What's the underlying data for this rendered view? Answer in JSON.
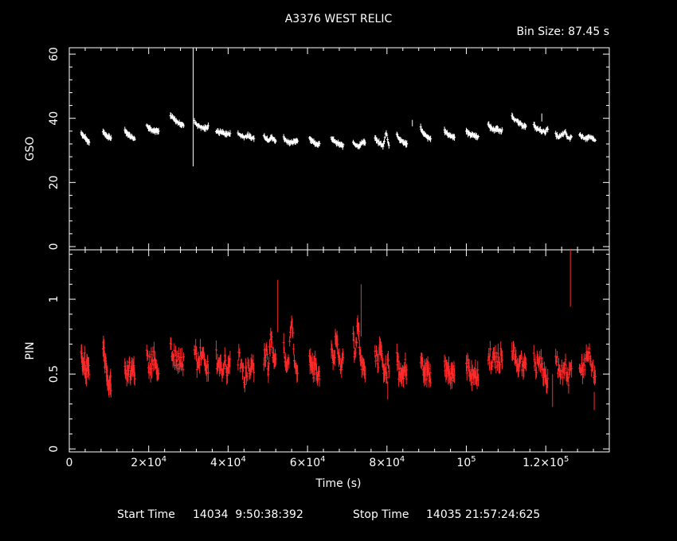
{
  "chart_data": {
    "type": "scatter",
    "title": "A3376 WEST RELIC",
    "bin_size_text": "Bin Size: 87.45 s",
    "footer": {
      "start_label": "Start Time",
      "start_value": "14034  9:50:38:392",
      "stop_label": "Stop Time",
      "stop_value": "14035 21:57:24:625"
    },
    "xlabel": "Time (s)",
    "xlim": [
      0,
      136000
    ],
    "x_ticks": [
      {
        "value": 0,
        "base": "0",
        "exp": ""
      },
      {
        "value": 20000,
        "base": "2×10",
        "exp": "4"
      },
      {
        "value": 40000,
        "base": "4×10",
        "exp": "4"
      },
      {
        "value": 60000,
        "base": "6×10",
        "exp": "4"
      },
      {
        "value": 80000,
        "base": "8×10",
        "exp": "4"
      },
      {
        "value": 100000,
        "base": "10",
        "exp": "5"
      },
      {
        "value": 120000,
        "base": "1.2×10",
        "exp": "5"
      }
    ],
    "panels": [
      {
        "name": "GSO",
        "ylabel": "GSO",
        "ylim": [
          -1,
          62
        ],
        "y_ticks": [
          "0",
          "20",
          "40",
          "60"
        ],
        "y_tick_values": [
          0,
          20,
          40,
          60
        ],
        "color": "#ffffff",
        "segments": [
          {
            "x0": 3000,
            "x1": 5000,
            "y": [
              35.5,
              34.8,
              34.2,
              33.6,
              33.0,
              32.8
            ]
          },
          {
            "x0": 8500,
            "x1": 10500,
            "y": [
              36.0,
              35.2,
              34.6,
              34.2,
              34.0,
              33.8
            ]
          },
          {
            "x0": 14000,
            "x1": 16500,
            "y": [
              36.5,
              35.4,
              34.8,
              34.4,
              34.0,
              33.7
            ]
          },
          {
            "x0": 19500,
            "x1": 22500,
            "y": [
              37.8,
              37.0,
              36.6,
              36.2,
              36.0,
              35.8
            ]
          },
          {
            "x0": 25500,
            "x1": 28800,
            "y": [
              40.8,
              40.0,
              39.2,
              38.6,
              38.2,
              37.8
            ]
          },
          {
            "x0": 31500,
            "x1": 35000,
            "y": [
              39.0,
              38.0,
              37.4,
              37.0,
              36.8,
              37.6
            ]
          },
          {
            "x0": 37000,
            "x1": 40500,
            "y": [
              36.0,
              35.6,
              35.8,
              35.2,
              35.0,
              35.4
            ]
          },
          {
            "x0": 42500,
            "x1": 46500,
            "y": [
              35.2,
              34.6,
              34.2,
              34.6,
              34.0,
              33.8
            ]
          },
          {
            "x0": 49000,
            "x1": 52000,
            "y": [
              34.5,
              33.8,
              33.2,
              34.2,
              33.4,
              33.0
            ]
          },
          {
            "x0": 54000,
            "x1": 57500,
            "y": [
              34.0,
              33.0,
              32.6,
              32.2,
              32.8,
              33.2
            ]
          },
          {
            "x0": 60500,
            "x1": 63000,
            "y": [
              34.0,
              33.2,
              32.6,
              32.2,
              32.0,
              31.8
            ]
          },
          {
            "x0": 66000,
            "x1": 69000,
            "y": [
              33.8,
              33.0,
              32.4,
              32.0,
              31.6,
              31.4
            ]
          },
          {
            "x0": 71500,
            "x1": 74500,
            "y": [
              32.6,
              31.8,
              31.4,
              31.6,
              32.8,
              32.4
            ]
          },
          {
            "x0": 77000,
            "x1": 80500,
            "y": [
              33.8,
              32.6,
              32.0,
              31.4,
              35.8,
              31.6
            ]
          },
          {
            "x0": 82500,
            "x1": 85000,
            "y": [
              35.0,
              33.8,
              33.0,
              32.6,
              32.2,
              32.0
            ]
          },
          {
            "x0": 88500,
            "x1": 91000,
            "y": [
              37.2,
              35.6,
              34.8,
              34.2,
              33.8,
              33.6
            ]
          },
          {
            "x0": 94500,
            "x1": 97000,
            "y": [
              36.2,
              35.4,
              34.8,
              34.6,
              34.4,
              34.2
            ]
          },
          {
            "x0": 100000,
            "x1": 103000,
            "y": [
              36.0,
              35.2,
              35.0,
              34.8,
              34.4,
              34.2
            ]
          },
          {
            "x0": 105500,
            "x1": 109000,
            "y": [
              38.0,
              37.0,
              36.4,
              36.8,
              36.0,
              36.2
            ]
          },
          {
            "x0": 111500,
            "x1": 115000,
            "y": [
              41.0,
              39.6,
              38.8,
              38.2,
              37.8,
              37.4
            ]
          },
          {
            "x0": 117000,
            "x1": 120500,
            "y": [
              37.8,
              36.8,
              36.4,
              36.0,
              35.8,
              36.6
            ]
          },
          {
            "x0": 122500,
            "x1": 126500,
            "y": [
              35.0,
              34.0,
              34.8,
              35.6,
              33.6,
              34.2
            ]
          },
          {
            "x0": 128500,
            "x1": 132500,
            "y": [
              35.0,
              34.2,
              33.8,
              34.0,
              33.6,
              33.4
            ]
          }
        ],
        "spikes": [
          {
            "x": 31200,
            "y0": 25,
            "y1": 62
          },
          {
            "x": 86400,
            "y0": 37.5,
            "y1": 39.5
          },
          {
            "x": 119000,
            "y0": 39,
            "y1": 41.5
          }
        ]
      },
      {
        "name": "PIN",
        "ylabel": "PIN",
        "ylim": [
          -0.02,
          1.33
        ],
        "y_ticks": [
          "0",
          "0.5",
          "1"
        ],
        "y_tick_values": [
          0,
          0.5,
          1
        ],
        "color": "#ff2a2a",
        "segments": [
          {
            "x0": 3000,
            "x1": 5000,
            "y": [
              0.62,
              0.55,
              0.6,
              0.5,
              0.58,
              0.54
            ]
          },
          {
            "x0": 8500,
            "x1": 10500,
            "y": [
              0.7,
              0.6,
              0.52,
              0.48,
              0.45,
              0.42
            ]
          },
          {
            "x0": 14000,
            "x1": 16500,
            "y": [
              0.6,
              0.52,
              0.55,
              0.5,
              0.57,
              0.52
            ]
          },
          {
            "x0": 19500,
            "x1": 22500,
            "y": [
              0.62,
              0.55,
              0.58,
              0.6,
              0.52,
              0.56
            ]
          },
          {
            "x0": 25500,
            "x1": 28800,
            "y": [
              0.68,
              0.6,
              0.62,
              0.58,
              0.55,
              0.6
            ]
          },
          {
            "x0": 31500,
            "x1": 35000,
            "y": [
              0.66,
              0.58,
              0.62,
              0.64,
              0.56,
              0.55
            ]
          },
          {
            "x0": 37000,
            "x1": 40500,
            "y": [
              0.6,
              0.55,
              0.5,
              0.58,
              0.52,
              0.62
            ]
          },
          {
            "x0": 42500,
            "x1": 46500,
            "y": [
              0.62,
              0.55,
              0.48,
              0.52,
              0.5,
              0.55
            ]
          },
          {
            "x0": 49000,
            "x1": 52000,
            "y": [
              0.6,
              0.66,
              0.55,
              0.8,
              0.6,
              0.55
            ]
          },
          {
            "x0": 54000,
            "x1": 57500,
            "y": [
              0.7,
              0.55,
              0.62,
              0.9,
              0.58,
              0.52
            ]
          },
          {
            "x0": 60500,
            "x1": 63000,
            "y": [
              0.62,
              0.55,
              0.5,
              0.56,
              0.52,
              0.5
            ]
          },
          {
            "x0": 66000,
            "x1": 69000,
            "y": [
              0.66,
              0.58,
              0.75,
              0.62,
              0.55,
              0.6
            ]
          },
          {
            "x0": 71500,
            "x1": 74500,
            "y": [
              0.72,
              0.62,
              0.85,
              0.6,
              0.55,
              0.5
            ]
          },
          {
            "x0": 77000,
            "x1": 80500,
            "y": [
              0.65,
              0.58,
              0.7,
              0.55,
              0.52,
              0.56
            ]
          },
          {
            "x0": 82500,
            "x1": 85000,
            "y": [
              0.6,
              0.52,
              0.5,
              0.48,
              0.55,
              0.52
            ]
          },
          {
            "x0": 88500,
            "x1": 91000,
            "y": [
              0.6,
              0.55,
              0.5,
              0.52,
              0.48,
              0.5
            ]
          },
          {
            "x0": 94500,
            "x1": 97000,
            "y": [
              0.6,
              0.52,
              0.55,
              0.5,
              0.48,
              0.52
            ]
          },
          {
            "x0": 100000,
            "x1": 103000,
            "y": [
              0.58,
              0.52,
              0.5,
              0.48,
              0.52,
              0.5
            ]
          },
          {
            "x0": 105500,
            "x1": 109000,
            "y": [
              0.64,
              0.6,
              0.62,
              0.58,
              0.6,
              0.62
            ]
          },
          {
            "x0": 111500,
            "x1": 115000,
            "y": [
              0.66,
              0.62,
              0.58,
              0.6,
              0.55,
              0.52
            ]
          },
          {
            "x0": 117000,
            "x1": 120500,
            "y": [
              0.62,
              0.55,
              0.6,
              0.52,
              0.48,
              0.44
            ]
          },
          {
            "x0": 122500,
            "x1": 126500,
            "y": [
              0.6,
              0.52,
              0.5,
              0.55,
              0.48,
              0.52
            ]
          },
          {
            "x0": 128500,
            "x1": 132500,
            "y": [
              0.6,
              0.55,
              0.58,
              0.62,
              0.52,
              0.5
            ]
          }
        ],
        "spikes": [
          {
            "x": 52500,
            "y0": 0.78,
            "y1": 1.13
          },
          {
            "x": 73500,
            "y0": 0.75,
            "y1": 1.1
          },
          {
            "x": 126200,
            "y0": 0.95,
            "y1": 1.33
          },
          {
            "x": 121700,
            "y0": 0.28,
            "y1": 0.5
          },
          {
            "x": 132200,
            "y0": 0.26,
            "y1": 0.38
          },
          {
            "x": 10300,
            "y0": 0.36,
            "y1": 0.48
          },
          {
            "x": 80200,
            "y0": 0.33,
            "y1": 0.45
          }
        ]
      }
    ]
  }
}
